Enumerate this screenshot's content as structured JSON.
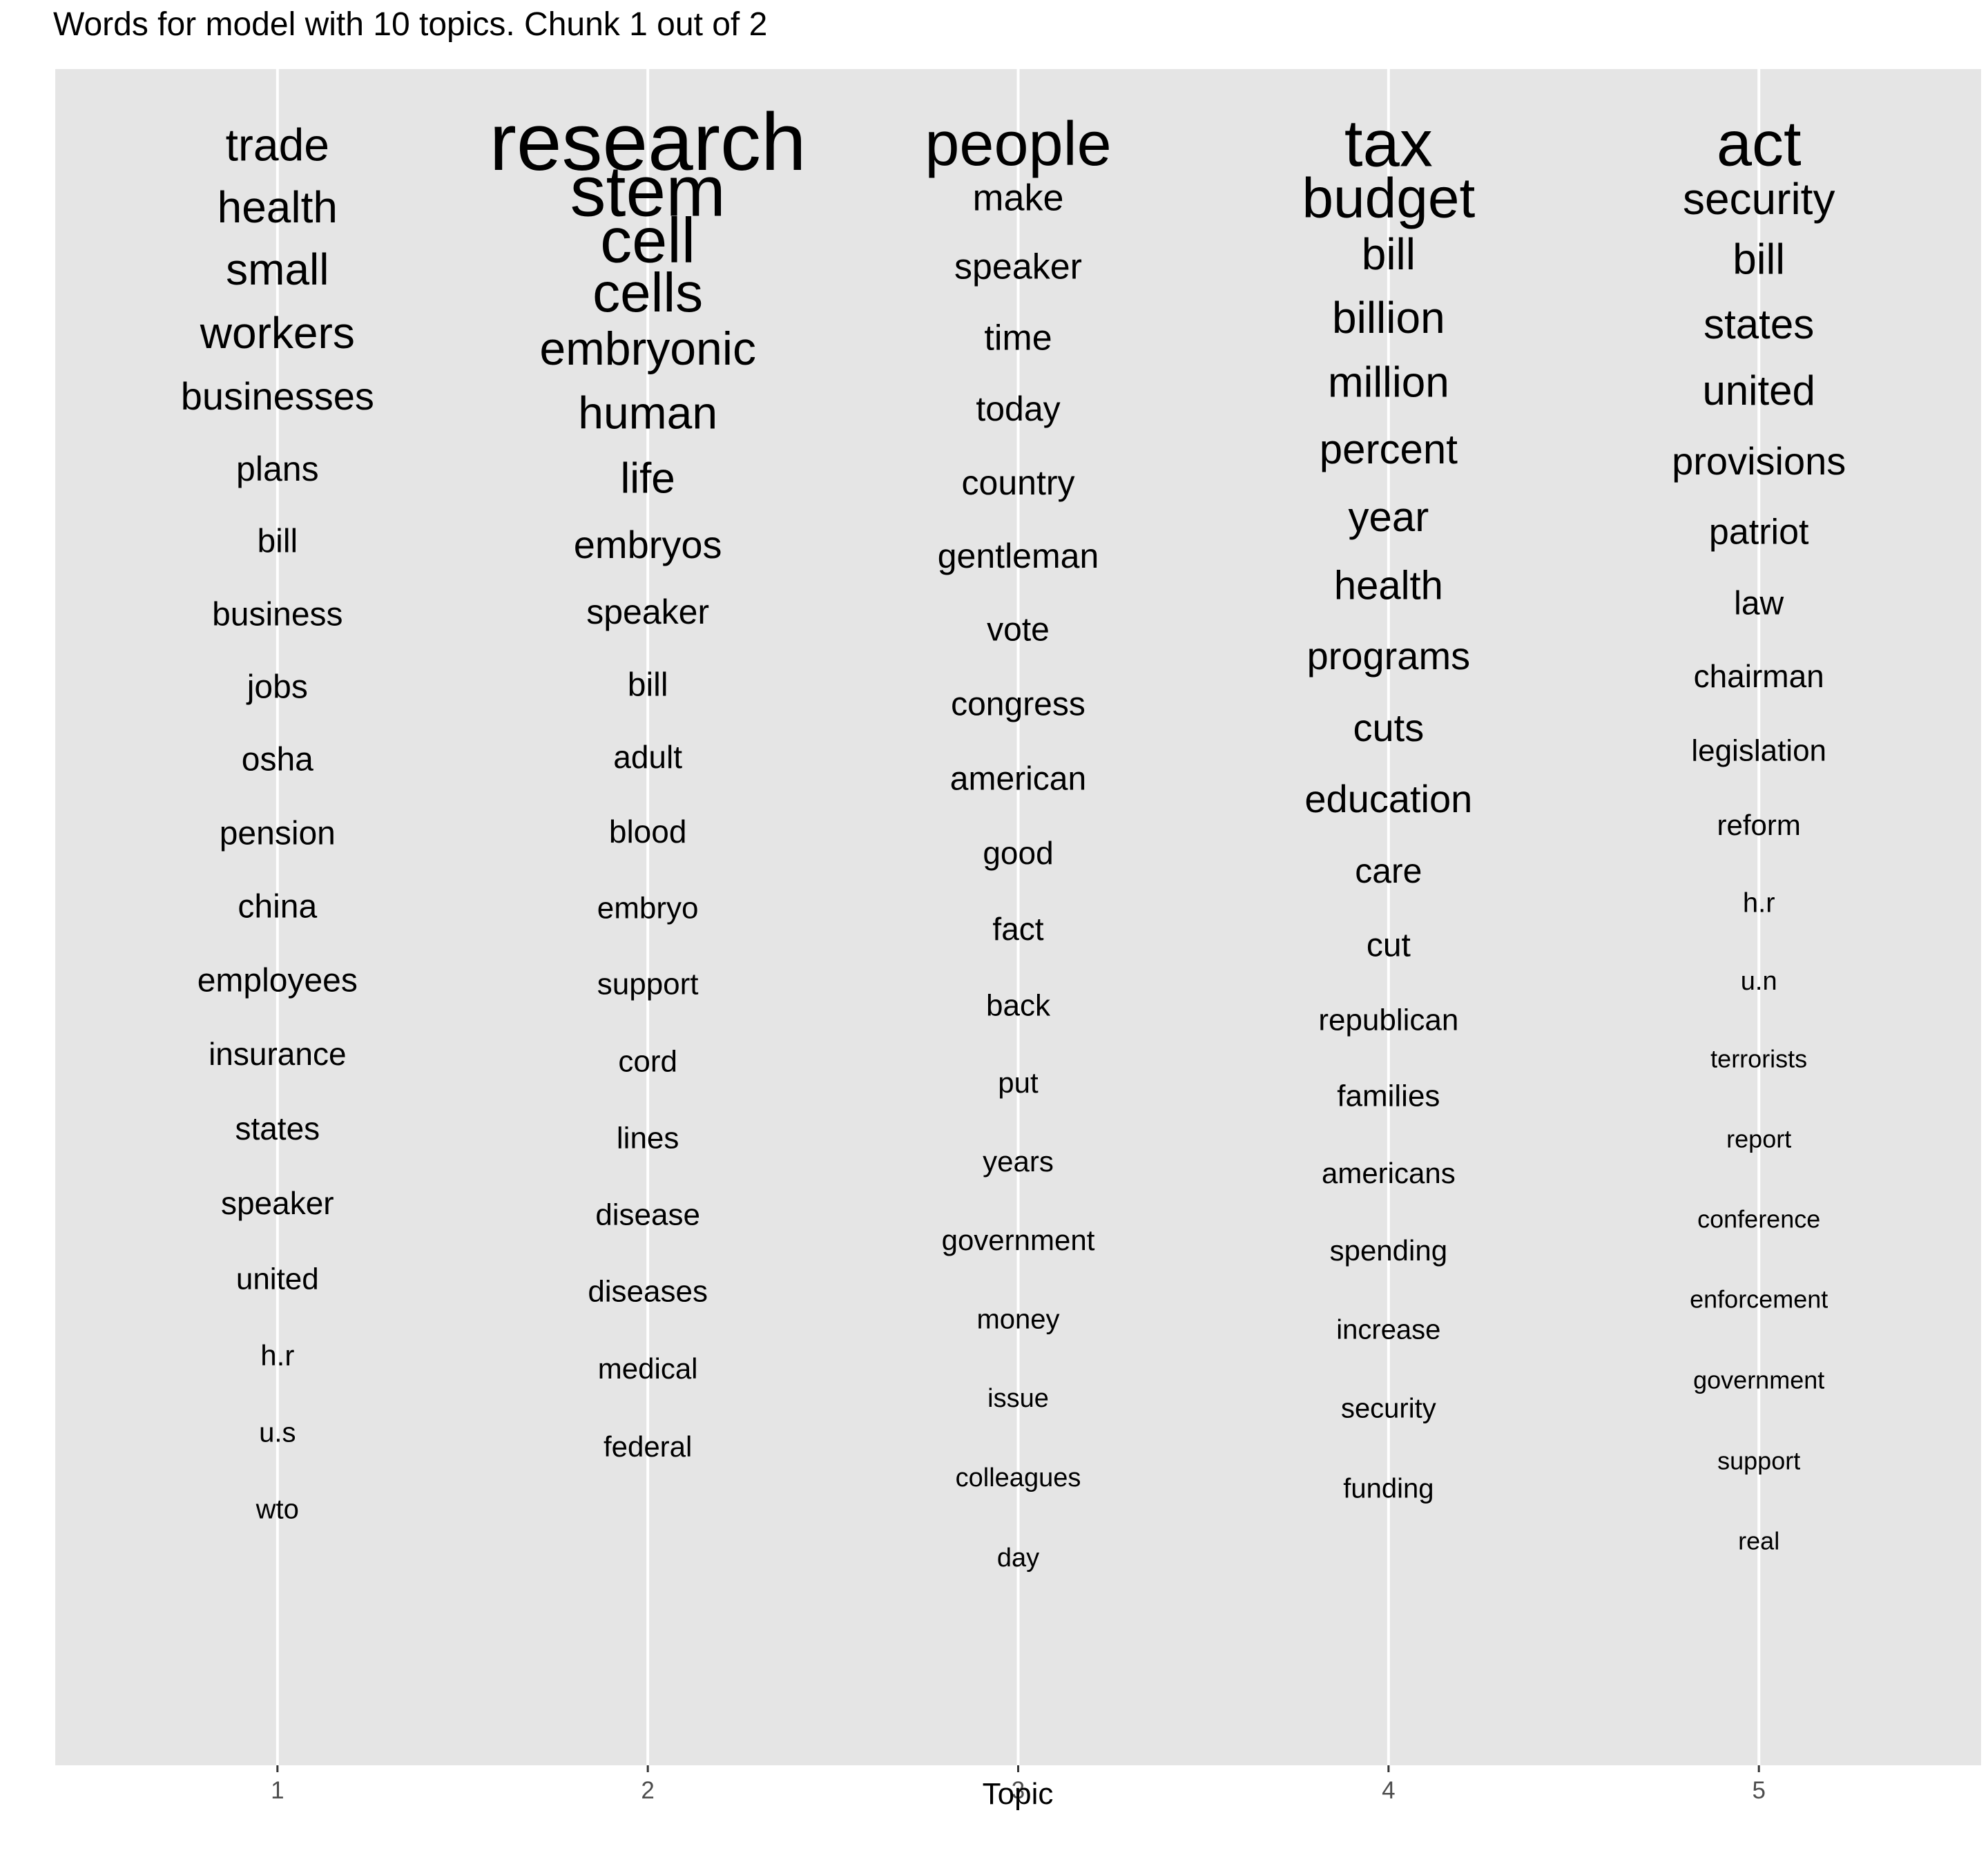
{
  "chart_data": {
    "type": "text-word-cloud",
    "title": "Words for model with 10 topics. Chunk 1 out of 2",
    "xlabel": "Topic",
    "ylabel": "",
    "x_ticks": [
      "1",
      "2",
      "3",
      "4",
      "5"
    ],
    "grid": "vertical major lines at topic positions",
    "background": "#e5e5e5",
    "topics": [
      {
        "topic": 1,
        "words": [
          "trade",
          "health",
          "small",
          "workers",
          "businesses",
          "plans",
          "bill",
          "business",
          "jobs",
          "osha",
          "pension",
          "china",
          "employees",
          "insurance",
          "states",
          "speaker",
          "united",
          "h.r",
          "u.s",
          "wto"
        ]
      },
      {
        "topic": 2,
        "words": [
          "research",
          "stem",
          "cell",
          "cells",
          "embryonic",
          "human",
          "life",
          "embryos",
          "speaker",
          "bill",
          "adult",
          "blood",
          "embryo",
          "support",
          "cord",
          "lines",
          "disease",
          "diseases",
          "medical",
          "federal"
        ]
      },
      {
        "topic": 3,
        "words": [
          "people",
          "make",
          "speaker",
          "time",
          "today",
          "country",
          "gentleman",
          "vote",
          "congress",
          "american",
          "good",
          "fact",
          "back",
          "put",
          "years",
          "government",
          "money",
          "issue",
          "colleagues",
          "day"
        ]
      },
      {
        "topic": 4,
        "words": [
          "tax",
          "budget",
          "bill",
          "billion",
          "million",
          "percent",
          "year",
          "health",
          "programs",
          "cuts",
          "education",
          "care",
          "cut",
          "republican",
          "families",
          "americans",
          "spending",
          "increase",
          "security",
          "funding"
        ]
      },
      {
        "topic": 5,
        "words": [
          "act",
          "security",
          "bill",
          "states",
          "united",
          "provisions",
          "patriot",
          "law",
          "chairman",
          "legislation",
          "reform",
          "h.r",
          "u.n",
          "terrorists",
          "report",
          "conference",
          "enforcement",
          "government",
          "support",
          "real"
        ]
      }
    ]
  }
}
